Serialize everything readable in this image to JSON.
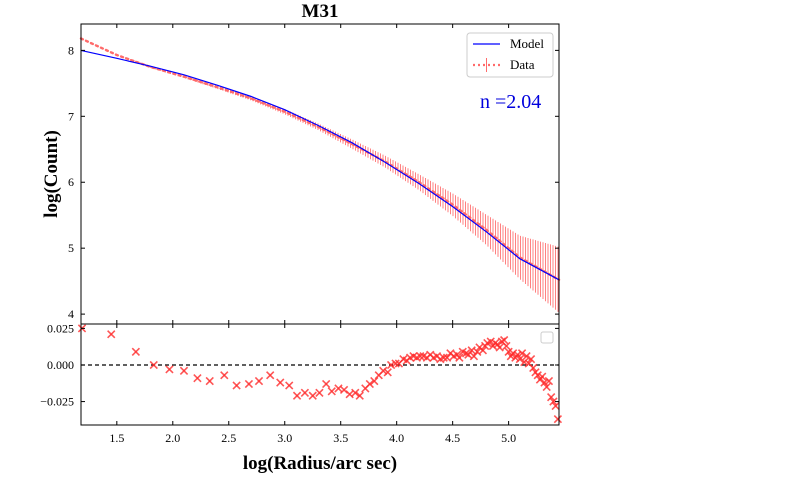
{
  "chart_data": [
    {
      "type": "line",
      "title": "M31",
      "ylabel": "log(Count)",
      "xlabel": "",
      "xlim": [
        1.18,
        5.45
      ],
      "ylim": [
        3.85,
        8.4
      ],
      "xticks": [
        1.5,
        2.0,
        2.5,
        3.0,
        3.5,
        4.0,
        4.5,
        5.0
      ],
      "yticks": [
        4,
        5,
        6,
        7,
        8
      ],
      "ytick_labels": [
        "4",
        "5",
        "6",
        "7",
        "8"
      ],
      "legend": {
        "placement": "top-right",
        "entries": [
          "Model",
          "Data"
        ]
      },
      "annotation": "n =2.04",
      "colors": {
        "model": "#0000ff",
        "data": "#ff6b6b",
        "annotation": "#0000dd"
      },
      "series": [
        {
          "name": "Model",
          "style": "solid",
          "x": [
            1.18,
            1.5,
            1.8,
            2.1,
            2.4,
            2.7,
            3.0,
            3.3,
            3.6,
            3.9,
            4.2,
            4.5,
            4.8,
            5.1,
            5.45
          ],
          "y": [
            8.0,
            7.88,
            7.76,
            7.63,
            7.47,
            7.3,
            7.1,
            6.86,
            6.6,
            6.3,
            5.98,
            5.63,
            5.25,
            4.84,
            4.52
          ]
        },
        {
          "name": "Data",
          "style": "dotted",
          "x": [
            1.18,
            1.5,
            1.8,
            2.1,
            2.4,
            2.7,
            3.0,
            3.3,
            3.6,
            3.9,
            4.2,
            4.5,
            4.8,
            5.1,
            5.45
          ],
          "y": [
            8.18,
            7.93,
            7.75,
            7.6,
            7.44,
            7.27,
            7.07,
            6.84,
            6.58,
            6.31,
            6.0,
            5.66,
            5.28,
            4.86,
            4.52
          ],
          "yerr": [
            0.01,
            0.01,
            0.015,
            0.02,
            0.025,
            0.03,
            0.04,
            0.05,
            0.07,
            0.09,
            0.12,
            0.17,
            0.23,
            0.33,
            0.5
          ]
        }
      ]
    },
    {
      "type": "scatter",
      "xlabel": "log(Radius/arc sec)",
      "ylabel": "",
      "xlim": [
        1.18,
        5.45
      ],
      "ylim": [
        -0.041,
        0.028
      ],
      "xticks": [
        1.5,
        2.0,
        2.5,
        3.0,
        3.5,
        4.0,
        4.5,
        5.0
      ],
      "xtick_labels": [
        "1.5",
        "2.0",
        "2.5",
        "3.0",
        "3.5",
        "4.0",
        "4.5",
        "5.0"
      ],
      "yticks": [
        0.025,
        0.0,
        -0.025
      ],
      "ytick_labels": [
        "0.025",
        "0.000",
        "−0.025"
      ],
      "reference_line": {
        "y": 0.0,
        "style": "dashed"
      },
      "colors": {
        "marker": "#ff2a2a"
      },
      "series": [
        {
          "marker": "x",
          "x": [
            1.18,
            1.45,
            1.67,
            1.83,
            1.97,
            2.1,
            2.22,
            2.33,
            2.46,
            2.57,
            2.68,
            2.77,
            2.87,
            2.96,
            3.04,
            3.11,
            3.18,
            3.25,
            3.31,
            3.37,
            3.42,
            3.48,
            3.53,
            3.58,
            3.63,
            3.67,
            3.72,
            3.76,
            3.8,
            3.84,
            3.88,
            3.92,
            3.95,
            3.99,
            4.02,
            4.06,
            4.09,
            4.12,
            4.15,
            4.18,
            4.21,
            4.24,
            4.27,
            4.3,
            4.33,
            4.36,
            4.39,
            4.42,
            4.45,
            4.48,
            4.51,
            4.54,
            4.56,
            4.59,
            4.62,
            4.64,
            4.67,
            4.69,
            4.72,
            4.74,
            4.77,
            4.79,
            4.81,
            4.84,
            4.86,
            4.88,
            4.9,
            4.92,
            4.94,
            4.96,
            4.98,
            5.0,
            5.02,
            5.04,
            5.06,
            5.08,
            5.1,
            5.12,
            5.14,
            5.16,
            5.18,
            5.2,
            5.22,
            5.24,
            5.26,
            5.28,
            5.3,
            5.32,
            5.34,
            5.36,
            5.38,
            5.4,
            5.42,
            5.44
          ],
          "y": [
            0.025,
            0.021,
            0.009,
            0.0,
            -0.003,
            -0.004,
            -0.009,
            -0.011,
            -0.007,
            -0.014,
            -0.013,
            -0.011,
            -0.007,
            -0.012,
            -0.014,
            -0.021,
            -0.019,
            -0.021,
            -0.019,
            -0.013,
            -0.018,
            -0.016,
            -0.017,
            -0.02,
            -0.019,
            -0.021,
            -0.016,
            -0.013,
            -0.011,
            -0.007,
            -0.004,
            -0.005,
            0.0,
            0.001,
            0.001,
            0.004,
            0.003,
            0.005,
            0.006,
            0.005,
            0.006,
            0.006,
            0.005,
            0.007,
            0.005,
            0.006,
            0.004,
            0.005,
            0.005,
            0.008,
            0.006,
            0.007,
            0.005,
            0.009,
            0.008,
            0.007,
            0.01,
            0.006,
            0.009,
            0.012,
            0.01,
            0.013,
            0.015,
            0.016,
            0.013,
            0.015,
            0.014,
            0.012,
            0.016,
            0.017,
            0.013,
            0.009,
            0.006,
            0.008,
            0.005,
            0.007,
            0.004,
            0.008,
            0.002,
            0.006,
            0.001,
            0.004,
            -0.002,
            -0.005,
            -0.007,
            -0.01,
            -0.008,
            -0.012,
            -0.015,
            -0.011,
            -0.022,
            -0.025,
            -0.028,
            -0.037
          ]
        }
      ]
    }
  ]
}
